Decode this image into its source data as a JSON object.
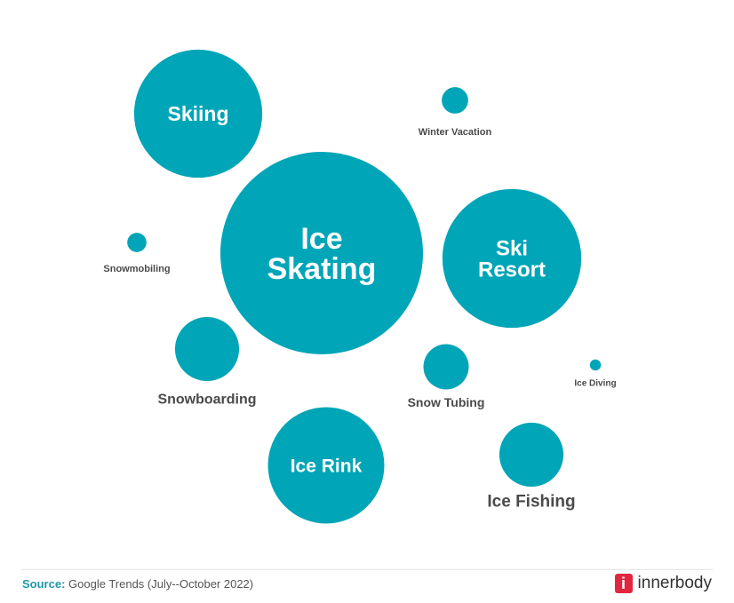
{
  "chart_data": {
    "type": "bubble",
    "color": "#00a5b7",
    "label_color": "#4a4a4a",
    "value_note": "",
    "series": [
      {
        "name": "Ice Skating",
        "value": 100
      },
      {
        "name": "Ski Resort",
        "value": 47
      },
      {
        "name": "Skiing",
        "value": 40
      },
      {
        "name": "Ice Rink",
        "value": 33
      },
      {
        "name": "Ice Fishing",
        "value": 10
      },
      {
        "name": "Snowboarding",
        "value": 10
      },
      {
        "name": "Snow Tubing",
        "value": 5
      },
      {
        "name": "Winter Vacation",
        "value": 1.7
      },
      {
        "name": "Snowmobiling",
        "value": 0.9
      },
      {
        "name": "Ice Diving",
        "value": 0.3
      }
    ]
  },
  "footer": {
    "source_label": "Source:",
    "source_text": " Google Trends (July--October 2022)",
    "logo_mark": "i",
    "logo_text": "innerbody",
    "logo_color": "#e3263f"
  }
}
